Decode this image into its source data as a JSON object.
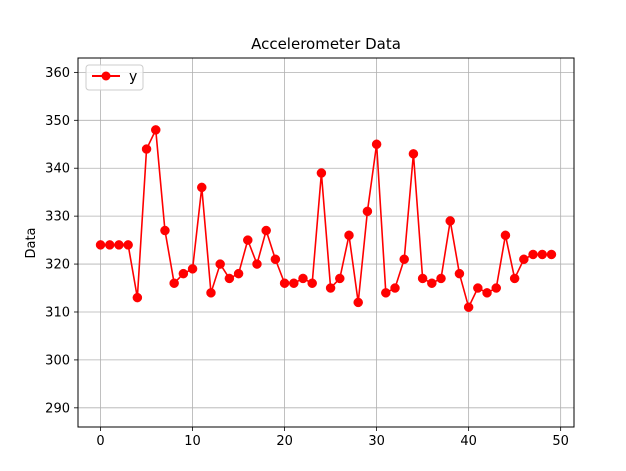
{
  "chart_data": {
    "type": "line",
    "title": "Accelerometer Data",
    "xlabel": "",
    "ylabel": "Data",
    "xlim": [
      -2.45,
      51.45
    ],
    "ylim": [
      286,
      363
    ],
    "xticks": [
      0,
      10,
      20,
      30,
      40,
      50
    ],
    "yticks": [
      290,
      300,
      310,
      320,
      330,
      340,
      350,
      360
    ],
    "xtick_labels": [
      "0",
      "10",
      "20",
      "30",
      "40",
      "50"
    ],
    "ytick_labels": [
      "290",
      "300",
      "310",
      "320",
      "330",
      "340",
      "350",
      "360"
    ],
    "grid": true,
    "legend_position": "upper-left",
    "series": [
      {
        "name": "y",
        "color": "#ff0000",
        "marker": "circle",
        "x": [
          0,
          1,
          2,
          3,
          4,
          5,
          6,
          7,
          8,
          9,
          10,
          11,
          12,
          13,
          14,
          15,
          16,
          17,
          18,
          19,
          20,
          21,
          22,
          23,
          24,
          25,
          26,
          27,
          28,
          29,
          30,
          31,
          32,
          33,
          34,
          35,
          36,
          37,
          38,
          39,
          40,
          41,
          42,
          43,
          44,
          45,
          46,
          47,
          48,
          49
        ],
        "values": [
          324,
          324,
          324,
          324,
          313,
          344,
          348,
          327,
          316,
          318,
          319,
          336,
          314,
          320,
          317,
          318,
          325,
          320,
          327,
          321,
          316,
          316,
          317,
          316,
          339,
          315,
          317,
          326,
          312,
          331,
          345,
          314,
          315,
          321,
          343,
          317,
          316,
          317,
          329,
          318,
          311,
          315,
          314,
          315,
          326,
          317,
          321,
          322,
          322,
          322
        ]
      }
    ]
  }
}
